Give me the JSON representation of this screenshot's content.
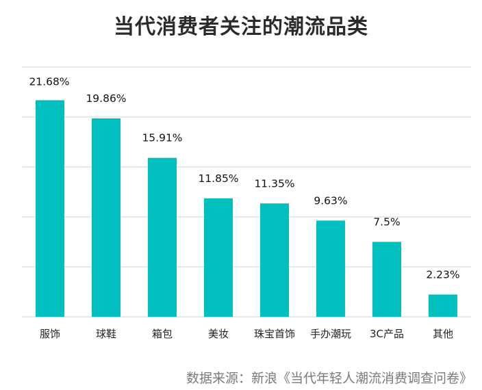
{
  "chart_data": {
    "type": "bar",
    "title": "当代消费者关注的潮流品类",
    "categories": [
      "服饰",
      "球鞋",
      "箱包",
      "美妆",
      "珠宝首饰",
      "手办潮玩",
      "3C产品",
      "其他"
    ],
    "values": [
      21.68,
      19.86,
      15.91,
      11.85,
      11.35,
      9.63,
      7.5,
      2.23
    ],
    "value_labels": [
      "21.68%",
      "19.86%",
      "15.91%",
      "11.85%",
      "11.35%",
      "9.63%",
      "7.5%",
      "2.23%"
    ],
    "xlabel": "",
    "ylabel": "",
    "ylim": [
      0,
      25
    ],
    "grid": true,
    "bar_color": "#00bfbf",
    "grid_color": "#d9e6ec"
  },
  "source": "数据来源：新浪《当代年轻人潮流消费调查问卷》"
}
